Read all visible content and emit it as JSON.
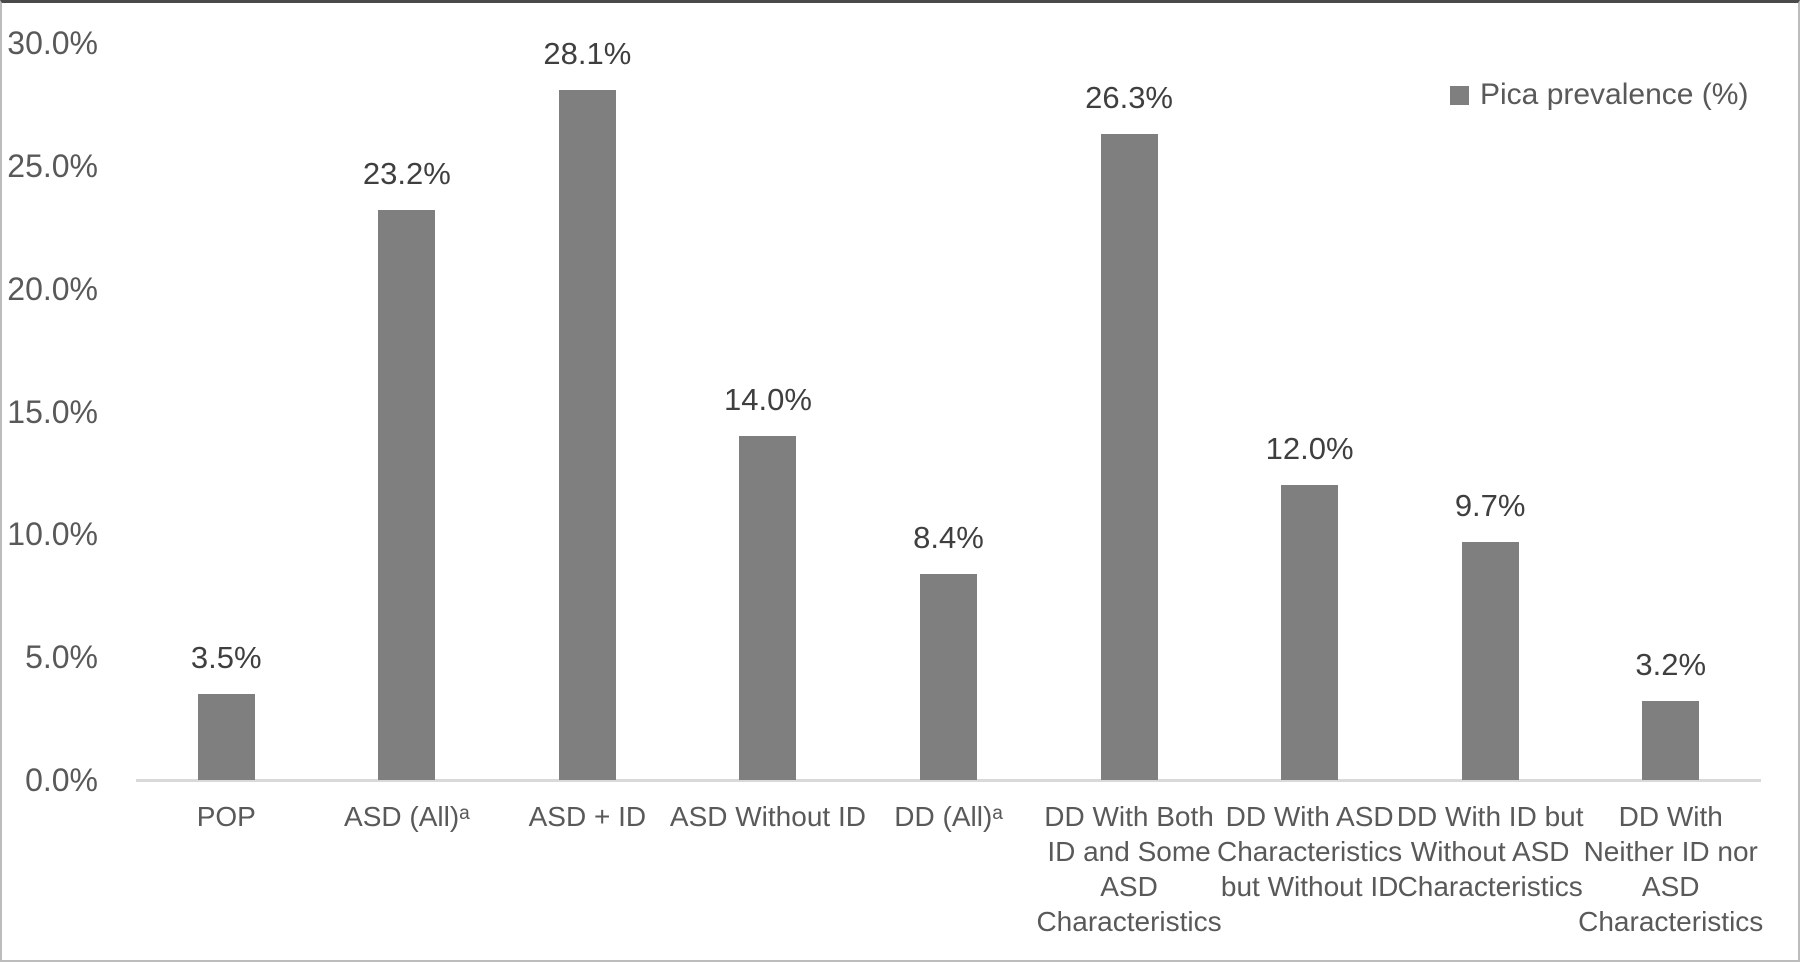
{
  "chart_data": {
    "type": "bar",
    "title": "",
    "xlabel": "",
    "ylabel": "",
    "legend": "Pica prevalence (%)",
    "legend_position": "top-right",
    "grid": false,
    "bar_color": "#7f7f7f",
    "axis_text_color": "#595959",
    "value_label_color": "#3f3f3f",
    "baseline_color": "#d9d9d9",
    "ylim": [
      0,
      30
    ],
    "yticks": [
      {
        "value": 0,
        "label": "0.0%"
      },
      {
        "value": 5,
        "label": "5.0%"
      },
      {
        "value": 10,
        "label": "10.0%"
      },
      {
        "value": 15,
        "label": "15.0%"
      },
      {
        "value": 20,
        "label": "20.0%"
      },
      {
        "value": 25,
        "label": "25.0%"
      },
      {
        "value": 30,
        "label": "30.0%"
      }
    ],
    "categories": [
      "POP",
      "ASD (All)ᵃ",
      "ASD + ID",
      "ASD Without ID",
      "DD (All)ᵃ",
      "DD With Both\nID and Some\nASD\nCharacteristics",
      "DD With ASD\nCharacteristics\nbut Without ID",
      "DD With ID but\nWithout ASD\nCharacteristics",
      "DD With\nNeither ID nor\nASD\nCharacteristics"
    ],
    "values": [
      3.5,
      23.2,
      28.1,
      14.0,
      8.4,
      26.3,
      12.0,
      9.7,
      3.2
    ],
    "value_labels": [
      "3.5%",
      "23.2%",
      "28.1%",
      "14.0%",
      "8.4%",
      "26.3%",
      "12.0%",
      "9.7%",
      "3.2%"
    ]
  }
}
